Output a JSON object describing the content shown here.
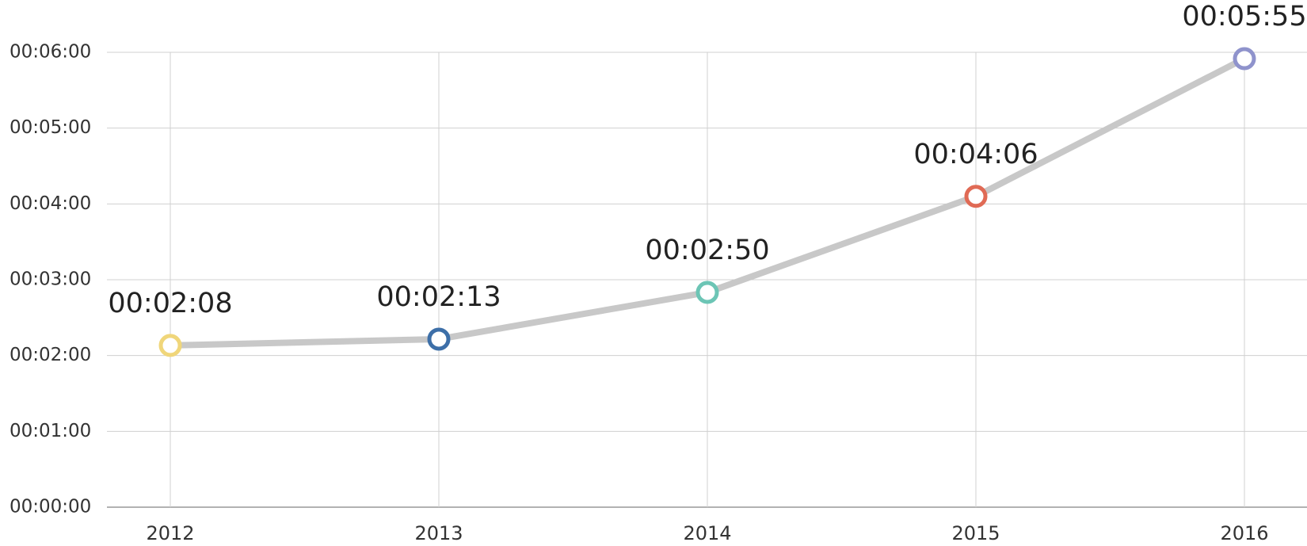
{
  "chart_data": {
    "type": "line",
    "categories": [
      "2012",
      "2013",
      "2014",
      "2015",
      "2016"
    ],
    "values": [
      128,
      133,
      170,
      246,
      355
    ],
    "value_labels": [
      "00:02:08",
      "00:02:13",
      "00:02:50",
      "00:04:06",
      "00:05:55"
    ],
    "color": "#c8c8c8",
    "point_colors": [
      "#f0d67a",
      "#3d6fa8",
      "#6cc5b5",
      "#e06a55",
      "#8f93cc"
    ],
    "ylim": [
      0,
      360
    ],
    "yticks": [
      {
        "value": 0,
        "label": "00:00:00"
      },
      {
        "value": 60,
        "label": "00:01:00"
      },
      {
        "value": 120,
        "label": "00:02:00"
      },
      {
        "value": 180,
        "label": "00:03:00"
      },
      {
        "value": 240,
        "label": "00:04:00"
      },
      {
        "value": 300,
        "label": "00:05:00"
      },
      {
        "value": 360,
        "label": "00:06:00"
      }
    ],
    "grid": true
  }
}
